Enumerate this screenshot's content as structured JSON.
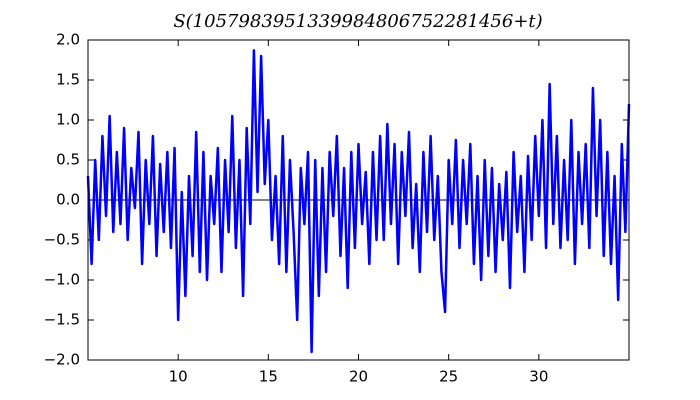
{
  "chart_data": {
    "type": "line",
    "title": "S(1057983951339984806752281456+t)",
    "x": [
      5.0,
      5.2,
      5.4,
      5.6,
      5.8,
      6.0,
      6.2,
      6.4,
      6.6,
      6.8,
      7.0,
      7.2,
      7.4,
      7.6,
      7.8,
      8.0,
      8.2,
      8.4,
      8.6,
      8.8,
      9.0,
      9.2,
      9.4,
      9.6,
      9.8,
      10.0,
      10.2,
      10.4,
      10.6,
      10.8,
      11.0,
      11.2,
      11.4,
      11.6,
      11.8,
      12.0,
      12.2,
      12.4,
      12.6,
      12.8,
      13.0,
      13.2,
      13.4,
      13.6,
      13.8,
      14.0,
      14.2,
      14.4,
      14.6,
      14.8,
      15.0,
      15.2,
      15.4,
      15.6,
      15.8,
      16.0,
      16.2,
      16.4,
      16.6,
      16.8,
      17.0,
      17.2,
      17.4,
      17.6,
      17.8,
      18.0,
      18.2,
      18.4,
      18.6,
      18.8,
      19.0,
      19.2,
      19.4,
      19.6,
      19.8,
      20.0,
      20.2,
      20.4,
      20.6,
      20.8,
      21.0,
      21.2,
      21.4,
      21.6,
      21.8,
      22.0,
      22.2,
      22.4,
      22.6,
      22.8,
      23.0,
      23.2,
      23.4,
      23.6,
      23.8,
      24.0,
      24.2,
      24.4,
      24.6,
      24.8,
      25.0,
      25.2,
      25.4,
      25.6,
      25.8,
      26.0,
      26.2,
      26.4,
      26.6,
      26.8,
      27.0,
      27.2,
      27.4,
      27.6,
      27.8,
      28.0,
      28.2,
      28.4,
      28.6,
      28.8,
      29.0,
      29.2,
      29.4,
      29.6,
      29.8,
      30.0,
      30.2,
      30.4,
      30.6,
      30.8,
      31.0,
      31.2,
      31.4,
      31.6,
      31.8,
      32.0,
      32.2,
      32.4,
      32.6,
      32.8,
      33.0,
      33.2,
      33.4,
      33.6,
      33.8,
      34.0,
      34.2,
      34.4,
      34.6,
      34.8,
      35.0
    ],
    "series": [
      {
        "color": "#0000ff",
        "values": [
          0.3,
          -0.8,
          0.5,
          -0.5,
          0.8,
          -0.2,
          1.05,
          -0.4,
          0.6,
          -0.3,
          0.9,
          -0.5,
          0.4,
          -0.1,
          0.85,
          -0.8,
          0.5,
          -0.3,
          0.8,
          -0.7,
          0.45,
          -0.4,
          0.6,
          -0.6,
          0.65,
          -1.5,
          0.1,
          -1.2,
          0.3,
          -0.7,
          0.85,
          -0.9,
          0.6,
          -1.0,
          0.3,
          -0.3,
          0.65,
          -0.9,
          0.5,
          -0.4,
          1.05,
          -0.6,
          0.5,
          -1.2,
          0.9,
          -0.3,
          1.87,
          0.1,
          1.8,
          0.2,
          1.0,
          -0.5,
          0.3,
          -0.8,
          0.8,
          -0.9,
          0.5,
          -0.4,
          -1.5,
          0.4,
          -0.3,
          0.6,
          -1.9,
          0.5,
          -1.2,
          0.4,
          -0.9,
          0.6,
          -0.2,
          0.8,
          -0.7,
          0.4,
          -1.1,
          0.6,
          -0.6,
          0.7,
          -0.3,
          0.35,
          -0.8,
          0.6,
          -0.5,
          0.8,
          -0.5,
          0.95,
          -0.3,
          0.7,
          -0.8,
          0.6,
          -0.2,
          0.85,
          -0.6,
          0.2,
          -0.9,
          0.6,
          -0.4,
          0.8,
          -0.5,
          0.3,
          -0.9,
          -1.4,
          0.5,
          -0.3,
          0.75,
          -0.6,
          0.5,
          -0.3,
          0.7,
          -0.8,
          0.3,
          -1.0,
          0.5,
          -0.7,
          0.4,
          -0.9,
          0.2,
          -0.5,
          0.35,
          -1.1,
          0.6,
          -0.4,
          0.3,
          -0.9,
          0.55,
          -0.5,
          0.8,
          -0.2,
          1.0,
          -0.6,
          1.45,
          -0.3,
          0.8,
          -0.6,
          0.5,
          -0.5,
          1.0,
          -0.8,
          0.6,
          -0.3,
          0.7,
          -0.6,
          1.4,
          -0.2,
          1.0,
          -0.7,
          0.6,
          -0.8,
          0.3,
          -1.25,
          0.7,
          -0.4,
          1.2
        ]
      }
    ],
    "hline": 0,
    "xlim": [
      5,
      35
    ],
    "xticks": [
      10,
      15,
      20,
      25,
      30
    ],
    "ylim": [
      -2,
      2
    ],
    "yticks": [
      {
        "value": -2,
        "label": "−2.0"
      },
      {
        "value": -1.5,
        "label": "−1.5"
      },
      {
        "value": -1,
        "label": "−1.0"
      },
      {
        "value": -0.5,
        "label": "−0.5"
      },
      {
        "value": 0,
        "label": "0.0"
      },
      {
        "value": 0.5,
        "label": "0.5"
      },
      {
        "value": 1,
        "label": "1.0"
      },
      {
        "value": 1.5,
        "label": "1.5"
      },
      {
        "value": 2,
        "label": "2.0"
      }
    ]
  }
}
